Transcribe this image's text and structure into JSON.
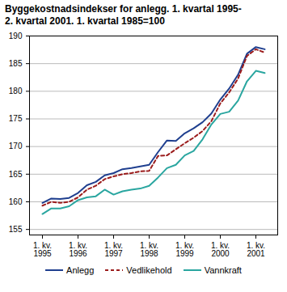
{
  "chart_data": {
    "type": "line",
    "title": "Byggekostnadsindekser for anlegg. 1. kvartal 1995-2. kvartal 2001. 1. kvartal 1985=100",
    "categories": [
      "1. kv.\n1995",
      null,
      null,
      null,
      "1. kv.\n1996",
      null,
      null,
      null,
      "1. kv.\n1997",
      null,
      null,
      null,
      "1. kv.\n1998",
      null,
      null,
      null,
      "1. kv.\n1999",
      null,
      null,
      null,
      "1. kv.\n2000",
      null,
      null,
      null,
      "1. kv.\n2001",
      null
    ],
    "series": [
      {
        "name": "Anlegg",
        "color": "#1f3f8f",
        "line_style": "solid",
        "values": [
          159.8,
          160.6,
          160.5,
          160.7,
          161.6,
          163.0,
          163.6,
          164.8,
          165.2,
          165.9,
          166.1,
          166.4,
          166.7,
          169.0,
          171.1,
          171.0,
          172.4,
          173.3,
          174.4,
          176.0,
          178.5,
          180.5,
          183.0,
          186.8,
          188.0,
          187.6
        ]
      },
      {
        "name": "Vedlikehold",
        "color": "#9b1c1c",
        "line_style": "dashed",
        "values": [
          159.3,
          160.0,
          159.8,
          160.0,
          160.8,
          162.2,
          162.9,
          164.1,
          164.6,
          165.0,
          165.2,
          165.5,
          165.6,
          168.3,
          168.4,
          169.5,
          170.6,
          171.6,
          172.8,
          174.6,
          177.8,
          179.8,
          182.3,
          186.4,
          187.6,
          187.0
        ]
      },
      {
        "name": "Vannkraft",
        "color": "#2aa6a0",
        "line_style": "solid",
        "values": [
          157.8,
          158.8,
          158.8,
          159.2,
          160.3,
          160.8,
          161.0,
          162.2,
          161.3,
          161.9,
          162.2,
          162.4,
          162.9,
          164.4,
          166.1,
          166.7,
          168.4,
          169.2,
          171.3,
          174.0,
          175.9,
          176.3,
          178.3,
          181.8,
          183.7,
          183.3
        ]
      }
    ],
    "ylim": [
      154,
      190
    ],
    "yticks": [
      155,
      160,
      165,
      170,
      175,
      180,
      185,
      190
    ],
    "grid": true
  }
}
